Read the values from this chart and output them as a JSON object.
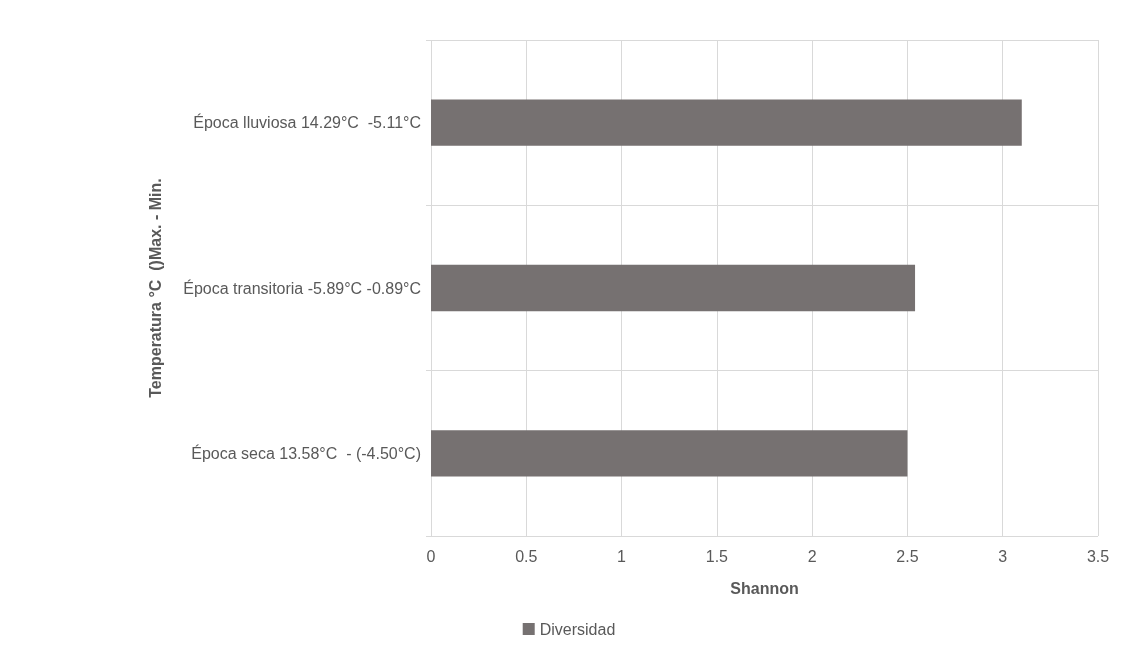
{
  "chart_data": {
    "type": "bar",
    "orientation": "horizontal",
    "categories": [
      "Época lluviosa 14.29°C  -5.11°C",
      "Época transitoria -5.89°C -0.89°C",
      "Época seca 13.58°C  - (-4.50°C)"
    ],
    "series": [
      {
        "name": "Diversidad",
        "color": "#767171",
        "values": [
          3.1,
          2.54,
          2.5
        ]
      }
    ],
    "xlabel": "Shannon",
    "ylabel": "Temperatura °C  ()Max. - Min.",
    "xlim": [
      0,
      3.5
    ],
    "xticks": [
      0,
      0.5,
      1,
      1.5,
      2,
      2.5,
      3,
      3.5
    ],
    "grid": true,
    "legend": "bottom"
  }
}
